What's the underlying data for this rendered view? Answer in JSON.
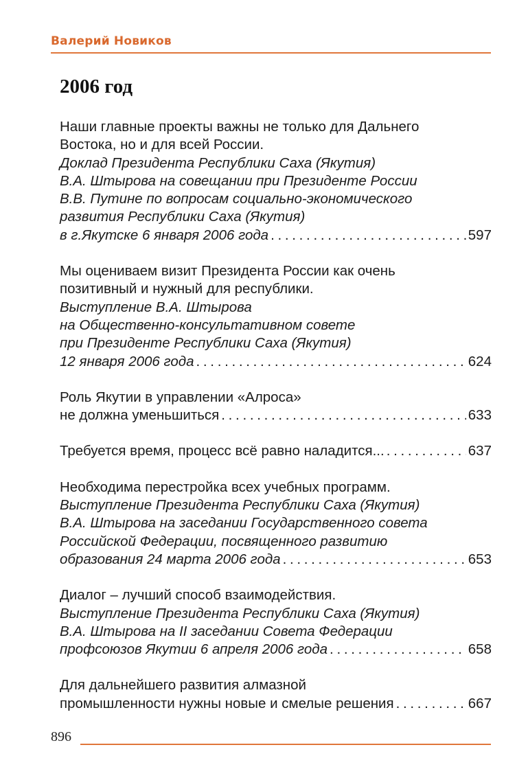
{
  "header": {
    "running_head": "Валерий Новиков",
    "accent_color": "#d9692e"
  },
  "section_title": "2006 год",
  "entries": [
    {
      "lines": [
        {
          "text": "Наши главные проекты важны не только для Дальнего",
          "italic": false
        },
        {
          "text": "Востока, но и для всей России.",
          "italic": false
        },
        {
          "text": "Доклад Президента Республики Саха (Якутия)",
          "italic": true
        },
        {
          "text": "В.А. Штырова на совещании при Президенте России",
          "italic": true
        },
        {
          "text": "В.В. Путине по вопросам социально-экономического",
          "italic": true
        },
        {
          "text": "развития Республики Саха (Якутия)",
          "italic": true
        }
      ],
      "last": {
        "text": "в г.Якутске 6 января 2006 года",
        "italic": true
      },
      "page": "597"
    },
    {
      "lines": [
        {
          "text": "Мы оцениваем визит Президента России как очень",
          "italic": false
        },
        {
          "text": "позитивный и нужный для республики.",
          "italic": false
        },
        {
          "text": "Выступление В.А. Штырова",
          "italic": true
        },
        {
          "text": "на Общественно-консультативном совете",
          "italic": true
        },
        {
          "text": "при Президенте Республики Саха (Якутия)",
          "italic": true
        }
      ],
      "last": {
        "text": "12 января 2006 года",
        "italic": true
      },
      "page": "624"
    },
    {
      "lines": [
        {
          "text": "Роль Якутии в управлении «Алроса»",
          "italic": false
        }
      ],
      "last": {
        "text": "не должна уменьшиться",
        "italic": false
      },
      "page": "633"
    },
    {
      "lines": [],
      "last": {
        "text": "Требуется время, процесс всё равно наладится...",
        "italic": false
      },
      "page": "637"
    },
    {
      "lines": [
        {
          "text": "Необходима перестройка всех учебных программ.",
          "italic": false
        },
        {
          "text": "Выступление Президента Республики Саха (Якутия)",
          "italic": true
        },
        {
          "text": "В.А. Штырова на заседании Государственного совета",
          "italic": true
        },
        {
          "text": "Российской Федерации, посвященного развитию",
          "italic": true
        }
      ],
      "last": {
        "text": "образования 24 марта 2006 года",
        "italic": true
      },
      "page": "653"
    },
    {
      "lines": [
        {
          "text": "Диалог – лучший способ взаимодействия.",
          "italic": false
        },
        {
          "text": "Выступление Президента Республики Саха (Якутия)",
          "italic": true
        },
        {
          "text": "В.А. Штырова на II заседании Совета Федерации",
          "italic": true
        }
      ],
      "last": {
        "text": "профсоюзов Якутии 6 апреля 2006 года",
        "italic": true
      },
      "page": "658"
    },
    {
      "lines": [
        {
          "text": "Для дальнейшего развития алмазной",
          "italic": false
        }
      ],
      "last": {
        "text": "промышленности нужны новые и смелые решения",
        "italic": false
      },
      "page": "667"
    }
  ],
  "footer": {
    "page_number": "896"
  }
}
